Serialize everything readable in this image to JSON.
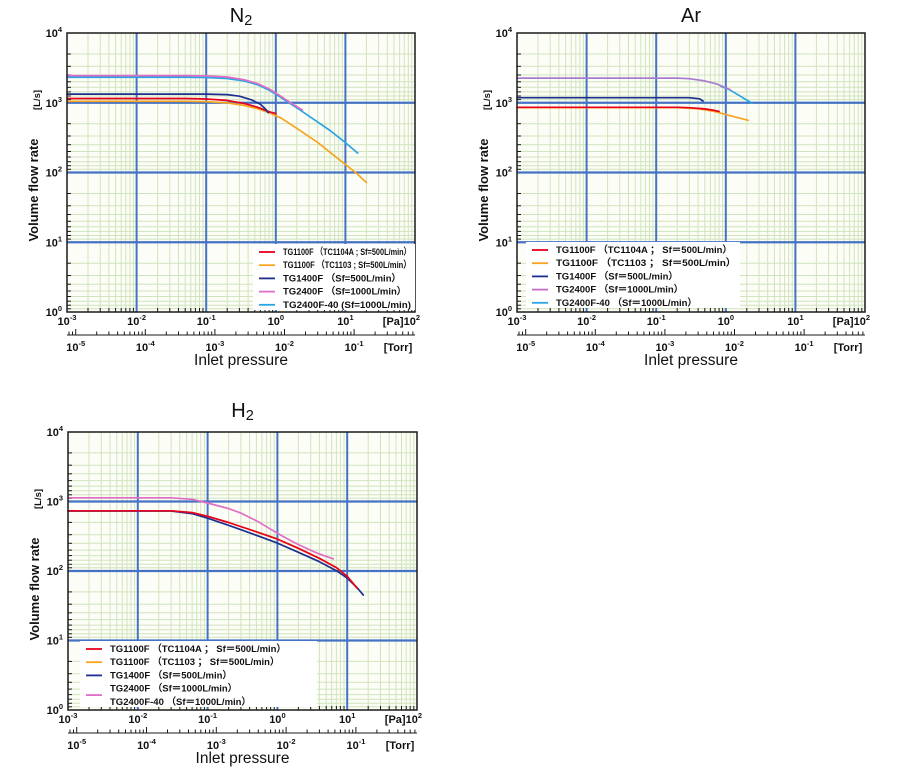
{
  "styles": {
    "plot_bg": "#fdfdf7",
    "grid_minor": "#cfe4bc",
    "grid_major": "#4472c4",
    "axis_color": "#1a1a1a",
    "text_color": "#111111",
    "legend_bg": "#ffffff",
    "series_red": "#e8001e",
    "series_orange": "#f7a520",
    "series_navy": "#1c2f8e",
    "series_pink": "#e06ec4",
    "series_violet": "#a87ccf",
    "series_cyan": "#2aa4e4"
  },
  "chart_data": [
    {
      "id": "n2",
      "type": "line",
      "title": "N",
      "title_sub": "2",
      "xlabel": "Inlet pressure",
      "ylabel": "Volume flow rate",
      "y_unit": "[L/s]",
      "x_unit_primary": "[Pa]",
      "x_unit_secondary": "[Torr]",
      "x_log_range_pa": [
        -3,
        2
      ],
      "y_log_range": [
        0,
        4
      ],
      "pa_tick_exponents": [
        -3,
        -2,
        -1,
        0,
        1,
        2
      ],
      "torr_tick_exponents": [
        -5,
        -4,
        -3,
        -2,
        -1
      ],
      "torr_offset_decades": 0.125,
      "grid": "log minor green, decade major blue",
      "legend": {
        "position": "bottom-right",
        "entries": [
          {
            "label": "TG1100F （TC1104A ; Sf=500L/min）",
            "color": "#e8001e",
            "swatch": "line"
          },
          {
            "label": "TG1100F （TC1103   ; Sf=500L/min）",
            "color": "#f7a520",
            "swatch": "line"
          },
          {
            "label": "TG1400F （Sf=500L/min）",
            "color": "#1c2f8e",
            "swatch": "line"
          },
          {
            "label": "TG2400F （Sf=1000L/min）",
            "color": "#e06ec4",
            "swatch": "line"
          },
          {
            "label": "TG2400F-40 (Sf=1000L/min)",
            "color": "#2aa4e4",
            "swatch": "line"
          }
        ]
      },
      "series": [
        {
          "name": "TG1100F (TC1103)",
          "color": "#f7a520",
          "points": [
            [
              0.001,
              1050
            ],
            [
              0.05,
              1050
            ],
            [
              0.1,
              1035
            ],
            [
              0.2,
              995
            ],
            [
              0.35,
              915
            ],
            [
              0.55,
              820
            ],
            [
              0.8,
              720
            ],
            [
              1.2,
              600
            ],
            [
              2,
              430
            ],
            [
              4,
              270
            ],
            [
              8,
              155
            ],
            [
              14,
              100
            ],
            [
              20,
              72
            ]
          ]
        },
        {
          "name": "TG1100F (TC1104A)",
          "color": "#e8001e",
          "points": [
            [
              0.001,
              1150
            ],
            [
              0.05,
              1150
            ],
            [
              0.1,
              1130
            ],
            [
              0.2,
              1080
            ],
            [
              0.35,
              980
            ],
            [
              0.55,
              860
            ],
            [
              0.8,
              745
            ],
            [
              1.0,
              700
            ]
          ]
        },
        {
          "name": "TG1400F",
          "color": "#1c2f8e",
          "points": [
            [
              0.001,
              1330
            ],
            [
              0.1,
              1330
            ],
            [
              0.2,
              1310
            ],
            [
              0.3,
              1240
            ],
            [
              0.45,
              1100
            ],
            [
              0.6,
              950
            ],
            [
              0.72,
              800
            ],
            [
              0.78,
              720
            ]
          ]
        },
        {
          "name": "TG2400F-40",
          "color": "#2aa4e4",
          "points": [
            [
              0.001,
              2320
            ],
            [
              0.05,
              2320
            ],
            [
              0.1,
              2300
            ],
            [
              0.2,
              2230
            ],
            [
              0.35,
              2060
            ],
            [
              0.55,
              1810
            ],
            [
              0.8,
              1520
            ],
            [
              1.1,
              1250
            ],
            [
              1.6,
              980
            ],
            [
              2.2,
              795
            ],
            [
              3.5,
              580
            ],
            [
              6,
              400
            ],
            [
              10,
              268
            ],
            [
              15,
              190
            ]
          ]
        },
        {
          "name": "TG2400F",
          "color": "#e06ec4",
          "points": [
            [
              0.001,
              2450
            ],
            [
              0.05,
              2450
            ],
            [
              0.1,
              2430
            ],
            [
              0.2,
              2340
            ],
            [
              0.35,
              2140
            ],
            [
              0.55,
              1880
            ],
            [
              0.8,
              1580
            ],
            [
              1.1,
              1300
            ],
            [
              1.6,
              1015
            ],
            [
              2.1,
              855
            ],
            [
              2.4,
              790
            ]
          ]
        }
      ]
    },
    {
      "id": "ar",
      "type": "line",
      "title": "Ar",
      "title_sub": "",
      "xlabel": "Inlet pressure",
      "ylabel": "Volume flow rate",
      "y_unit": "[L/s]",
      "x_unit_primary": "[Pa]",
      "x_unit_secondary": "[Torr]",
      "x_log_range_pa": [
        -3,
        2
      ],
      "y_log_range": [
        0,
        4
      ],
      "pa_tick_exponents": [
        -3,
        -2,
        -1,
        0,
        1,
        2
      ],
      "torr_tick_exponents": [
        -5,
        -4,
        -3,
        -2,
        -1
      ],
      "torr_offset_decades": 0.125,
      "grid": "log minor green, decade major blue",
      "legend": {
        "position": "bottom-left",
        "entries": [
          {
            "label": "TG1100F （TC1104A ； Sf＝500L/min）",
            "color": "#e8001e",
            "swatch": "line"
          },
          {
            "label": "TG1100F （TC1103   ； Sf＝500L/min）",
            "color": "#f7a520",
            "swatch": "line"
          },
          {
            "label": "TG1400F （Sf＝500L/min）",
            "color": "#1c2f8e",
            "swatch": "line"
          },
          {
            "label": "TG2400F （Sf＝1000L/min）",
            "color": "#c06ec8",
            "swatch": "line"
          },
          {
            "label": "TG2400F-40 （Sf＝1000L/min）",
            "color": "#2aa4e4",
            "swatch": "line"
          }
        ]
      },
      "series": [
        {
          "name": "TG1100F (TC1103)",
          "color": "#f7a520",
          "points": [
            [
              0.001,
              850
            ],
            [
              0.2,
              850
            ],
            [
              0.4,
              820
            ],
            [
              0.7,
              750
            ],
            [
              1.1,
              660
            ],
            [
              1.6,
              600
            ],
            [
              2.1,
              560
            ]
          ]
        },
        {
          "name": "TG1100F (TC1104A)",
          "color": "#e8001e",
          "points": [
            [
              0.001,
              860
            ],
            [
              0.2,
              860
            ],
            [
              0.3,
              850
            ],
            [
              0.5,
              815
            ],
            [
              0.65,
              785
            ],
            [
              0.8,
              750
            ]
          ]
        },
        {
          "name": "TG2400F-40",
          "color": "#2aa4e4",
          "points": [
            [
              0.85,
              1720
            ],
            [
              1.1,
              1560
            ],
            [
              1.5,
              1300
            ],
            [
              2.0,
              1090
            ],
            [
              2.4,
              985
            ]
          ]
        },
        {
          "name": "TG1400F",
          "color": "#1c2f8e",
          "points": [
            [
              0.001,
              1180
            ],
            [
              0.3,
              1180
            ],
            [
              0.42,
              1140
            ],
            [
              0.47,
              1060
            ]
          ]
        },
        {
          "name": "TG2400F",
          "color": "#a87ccf",
          "points": [
            [
              0.001,
              2260
            ],
            [
              0.2,
              2260
            ],
            [
              0.3,
              2210
            ],
            [
              0.5,
              2060
            ],
            [
              0.75,
              1850
            ],
            [
              1.0,
              1640
            ],
            [
              1.15,
              1540
            ]
          ]
        }
      ]
    },
    {
      "id": "h2",
      "type": "line",
      "title": "H",
      "title_sub": "2",
      "xlabel": "Inlet pressure",
      "ylabel": "Volume flow rate",
      "y_unit": "[L/s]",
      "x_unit_primary": "[Pa]",
      "x_unit_secondary": "[Torr]",
      "x_log_range_pa": [
        -3,
        2
      ],
      "y_log_range": [
        0,
        4
      ],
      "pa_tick_exponents": [
        -3,
        -2,
        -1,
        0,
        1,
        2
      ],
      "torr_tick_exponents": [
        -5,
        -4,
        -3,
        -2,
        -1
      ],
      "torr_offset_decades": 0.125,
      "grid": "log minor green, decade major blue",
      "legend": {
        "position": "bottom-left",
        "entries": [
          {
            "label": "TG1100F （TC1104A ； Sf＝500L/min）",
            "color": "#e8001e",
            "swatch": "line"
          },
          {
            "label": "TG1100F （TC1103   ； Sf＝500L/min）",
            "color": "#f7a520",
            "swatch": "line"
          },
          {
            "label": "TG1400F （Sf＝500L/min）",
            "color": "#1c2f8e",
            "swatch": "line"
          },
          {
            "label": "TG2400F （Sf＝1000L/min）",
            "color": "#e06ec4",
            "swatch": "below"
          },
          {
            "label": "TG2400F-40 （Sf＝1000L/min）",
            "color": "#e06ec4",
            "swatch": "none"
          }
        ]
      },
      "series": [
        {
          "name": "TG1100F (TC1103)",
          "color": "#f7a520",
          "points": [
            [
              0.001,
              735
            ],
            [
              0.03,
              735
            ],
            [
              0.06,
              692
            ],
            [
              0.1,
              612
            ],
            [
              0.2,
              498
            ],
            [
              0.4,
              396
            ],
            [
              0.7,
              326
            ],
            [
              1.0,
              288
            ],
            [
              2,
              212
            ],
            [
              4,
              152
            ],
            [
              7,
              112
            ],
            [
              10,
              84
            ],
            [
              14,
              56
            ]
          ]
        },
        {
          "name": "TG1400F",
          "color": "#1c2f8e",
          "points": [
            [
              0.001,
              730
            ],
            [
              0.03,
              730
            ],
            [
              0.06,
              670
            ],
            [
              0.1,
              575
            ],
            [
              0.2,
              455
            ],
            [
              0.4,
              355
            ],
            [
              0.7,
              288
            ],
            [
              1.0,
              252
            ],
            [
              2,
              186
            ],
            [
              4,
              136
            ],
            [
              7,
              101
            ],
            [
              10,
              79
            ],
            [
              14,
              57
            ],
            [
              17,
              45
            ]
          ]
        },
        {
          "name": "TG1100F (TC1104A)",
          "color": "#e8001e",
          "points": [
            [
              0.001,
              735
            ],
            [
              0.03,
              735
            ],
            [
              0.06,
              692
            ],
            [
              0.1,
              612
            ],
            [
              0.2,
              498
            ],
            [
              0.4,
              396
            ],
            [
              0.7,
              326
            ],
            [
              1.0,
              288
            ],
            [
              2,
              212
            ],
            [
              4,
              152
            ],
            [
              7,
              112
            ],
            [
              10,
              84
            ],
            [
              14,
              56
            ]
          ]
        },
        {
          "name": "TG2400F / TG2400F-40",
          "color": "#e06ec4",
          "points": [
            [
              0.001,
              1130
            ],
            [
              0.03,
              1130
            ],
            [
              0.06,
              1075
            ],
            [
              0.1,
              950
            ],
            [
              0.2,
              790
            ],
            [
              0.3,
              680
            ],
            [
              0.5,
              530
            ],
            [
              0.8,
              400
            ],
            [
              1.2,
              315
            ],
            [
              2,
              240
            ],
            [
              3.5,
              185
            ],
            [
              5,
              162
            ],
            [
              6.3,
              150
            ]
          ]
        }
      ]
    }
  ]
}
